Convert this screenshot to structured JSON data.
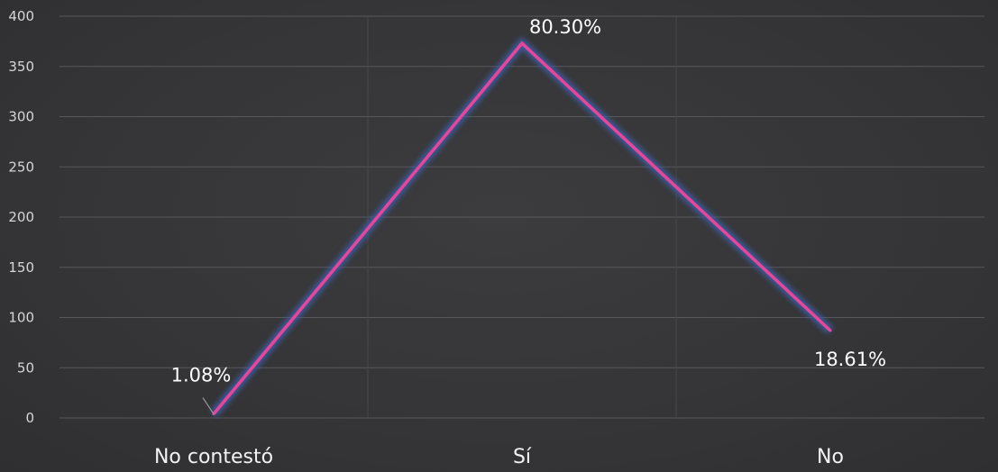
{
  "chart_data": {
    "type": "line",
    "categories": [
      "No contestó",
      "Sí",
      "No"
    ],
    "series": [
      {
        "values": [
          4,
          373,
          87
        ],
        "data_labels": [
          "1.08%",
          "80.30%",
          "18.61%"
        ],
        "color": "#e8469c"
      }
    ],
    "yticks": [
      "0",
      "50",
      "100",
      "150",
      "200",
      "250",
      "300",
      "350",
      "400"
    ],
    "ylim": [
      0,
      400
    ],
    "grid": true,
    "background": "#38383a",
    "line_color": "#e8469c",
    "glow_color": "#3c5fa8"
  }
}
